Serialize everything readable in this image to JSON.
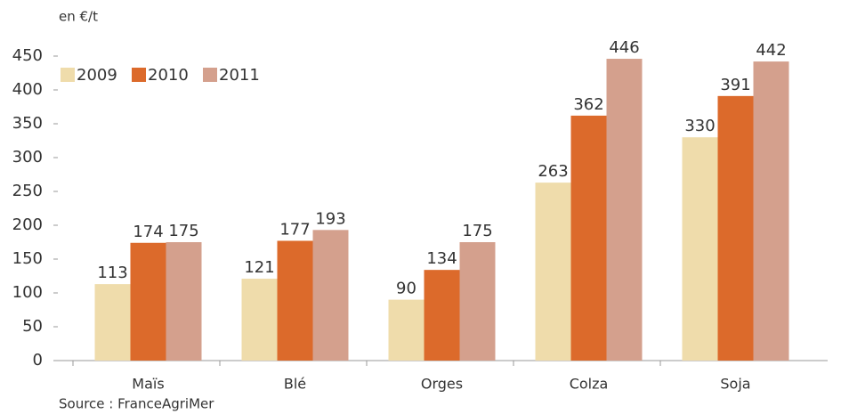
{
  "chart_data": {
    "type": "bar",
    "unit_label": "en €/t",
    "source": "Source : FranceAgriMer",
    "categories": [
      "Maïs",
      "Blé",
      "Orges",
      "Colza",
      "Soja"
    ],
    "series": [
      {
        "name": "2009",
        "color": "#efdcab",
        "values": [
          113,
          121,
          90,
          263,
          330
        ]
      },
      {
        "name": "2010",
        "color": "#dc6a2b",
        "values": [
          174,
          177,
          134,
          362,
          391
        ]
      },
      {
        "name": "2011",
        "color": "#d4a08d",
        "values": [
          175,
          193,
          175,
          446,
          442
        ]
      }
    ],
    "ylim": [
      0,
      450
    ],
    "yticks": [
      0,
      50,
      100,
      150,
      200,
      250,
      300,
      350,
      400,
      450
    ],
    "legend": "top-left"
  }
}
